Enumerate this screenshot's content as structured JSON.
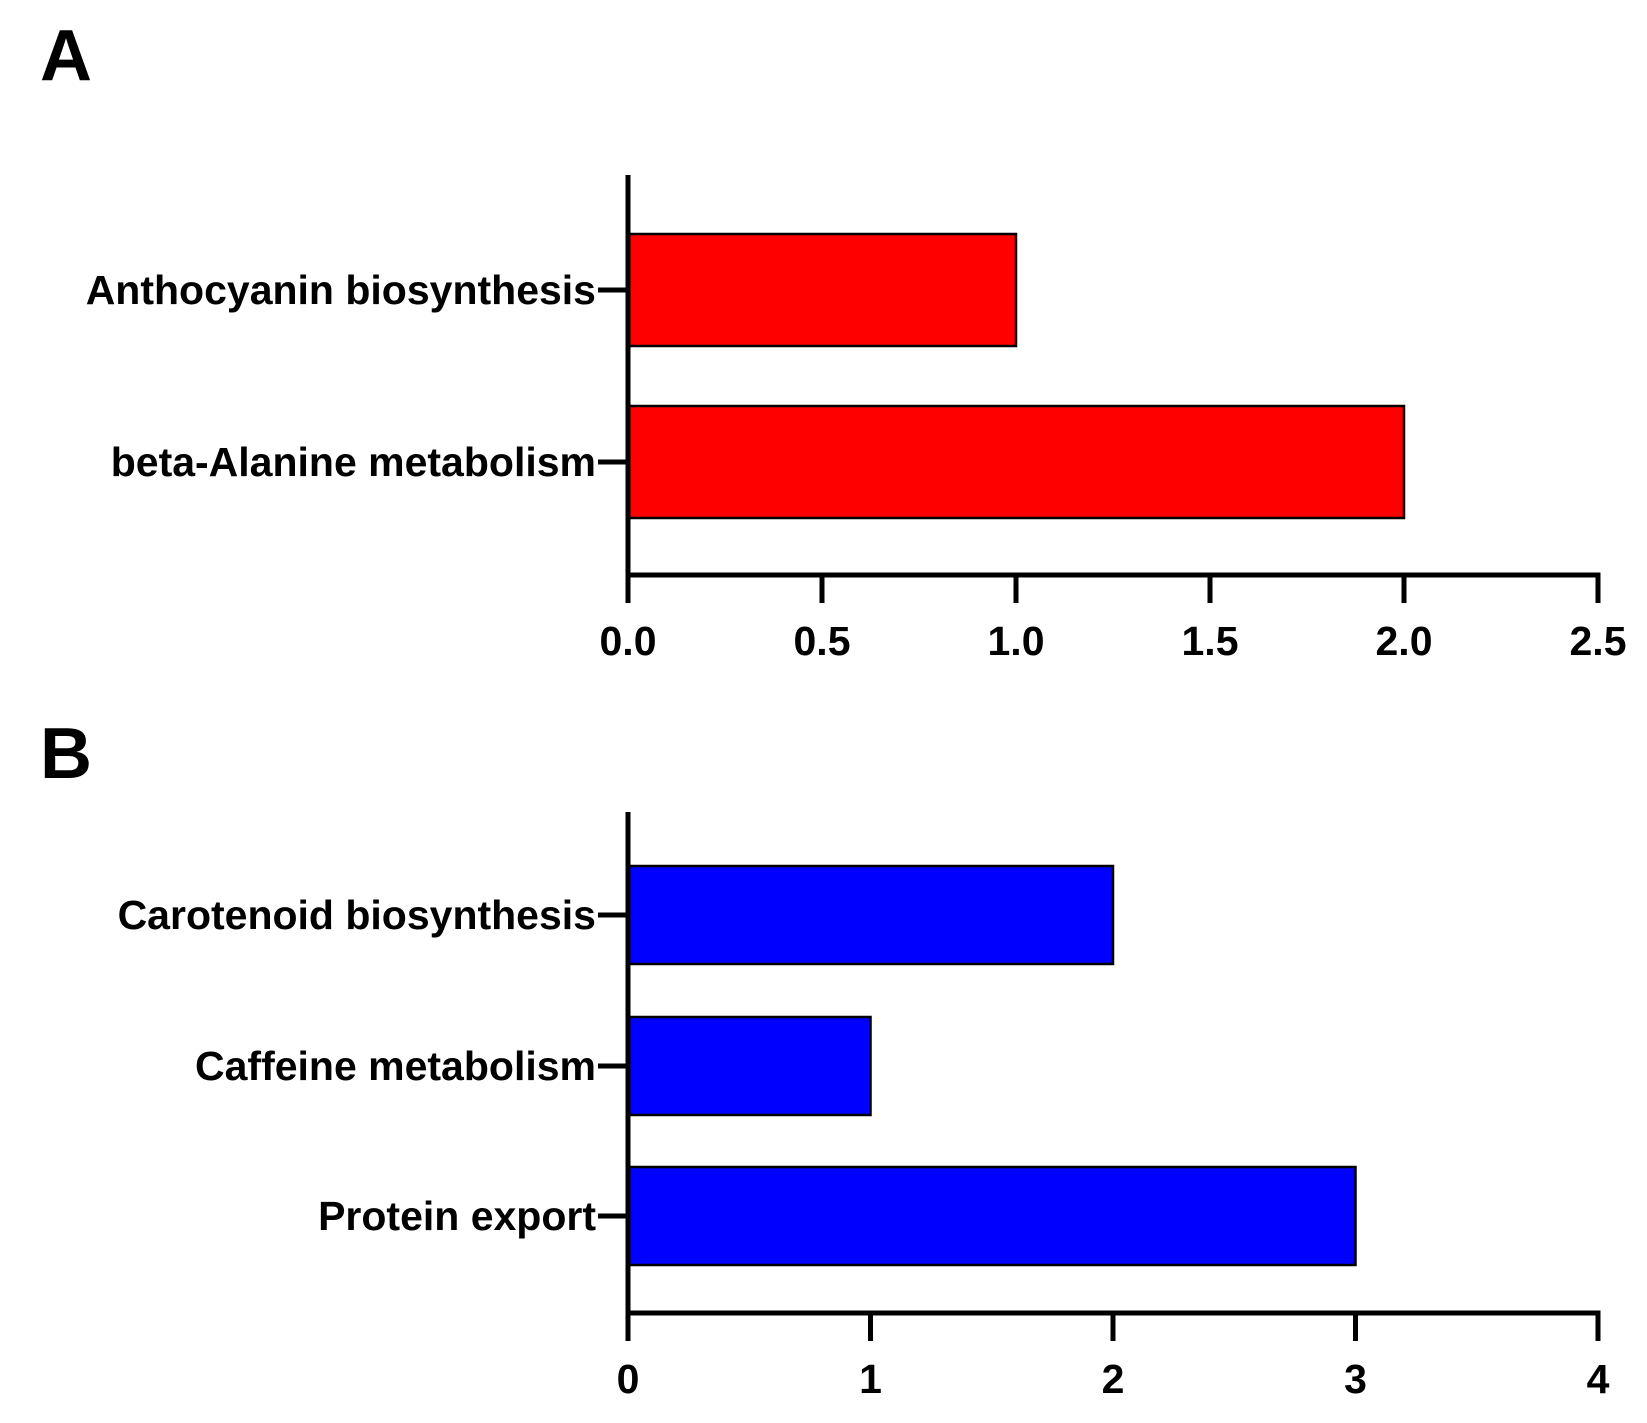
{
  "chart_data": [
    {
      "type": "bar",
      "orientation": "horizontal",
      "panel_label": "A",
      "categories": [
        "Anthocyanin biosynthesis",
        "beta-Alanine metabolism"
      ],
      "values": [
        1,
        2
      ],
      "xlim": [
        0,
        2.5
      ],
      "xticks": [
        "0.0",
        "0.5",
        "1.0",
        "1.5",
        "2.0",
        "2.5"
      ],
      "bar_color": "#ff0000",
      "grid": false,
      "legend": "none",
      "title": "",
      "xlabel": "",
      "ylabel": ""
    },
    {
      "type": "bar",
      "orientation": "horizontal",
      "panel_label": "B",
      "categories": [
        "Carotenoid biosynthesis",
        "Caffeine metabolism",
        "Protein export"
      ],
      "values": [
        2,
        1,
        3
      ],
      "xlim": [
        0,
        4
      ],
      "xticks": [
        "0",
        "1",
        "2",
        "3",
        "4"
      ],
      "bar_color": "#0000ff",
      "grid": false,
      "legend": "none",
      "title": "",
      "xlabel": "",
      "ylabel": ""
    }
  ]
}
